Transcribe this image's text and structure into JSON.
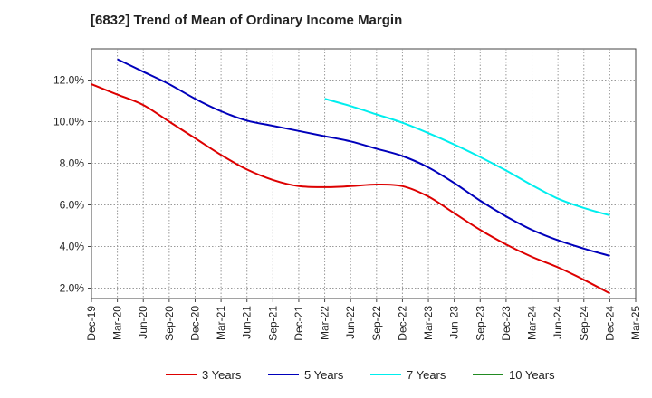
{
  "chart_data": {
    "type": "line",
    "title": "[6832]  Trend of Mean of Ordinary Income Margin",
    "xlabel": "",
    "ylabel": "",
    "x_ticks": [
      "Dec-19",
      "Mar-20",
      "Jun-20",
      "Sep-20",
      "Dec-20",
      "Mar-21",
      "Jun-21",
      "Sep-21",
      "Dec-21",
      "Mar-22",
      "Jun-22",
      "Sep-22",
      "Dec-22",
      "Mar-23",
      "Jun-23",
      "Sep-23",
      "Dec-23",
      "Mar-24",
      "Jun-24",
      "Sep-24",
      "Dec-24",
      "Mar-25"
    ],
    "y_ticks": [
      "2.0%",
      "4.0%",
      "6.0%",
      "8.0%",
      "10.0%",
      "12.0%"
    ],
    "ylim": [
      1.5,
      13.5
    ],
    "grid": true,
    "legend_position": "bottom",
    "series": [
      {
        "name": "3 Years",
        "color": "#dd0000",
        "x": [
          "Dec-19",
          "Mar-20",
          "Jun-20",
          "Sep-20",
          "Dec-20",
          "Mar-21",
          "Jun-21",
          "Sep-21",
          "Dec-21",
          "Mar-22",
          "Jun-22",
          "Sep-22",
          "Dec-22",
          "Mar-23",
          "Jun-23",
          "Sep-23",
          "Dec-23",
          "Mar-24",
          "Jun-24",
          "Sep-24",
          "Dec-24"
        ],
        "values": [
          11.8,
          11.3,
          10.8,
          10.0,
          9.2,
          8.4,
          7.7,
          7.2,
          6.9,
          6.85,
          6.9,
          6.98,
          6.9,
          6.4,
          5.6,
          4.8,
          4.1,
          3.5,
          3.0,
          2.4,
          1.75
        ]
      },
      {
        "name": "5 Years",
        "color": "#0000bb",
        "x": [
          "Mar-20",
          "Jun-20",
          "Sep-20",
          "Dec-20",
          "Mar-21",
          "Jun-21",
          "Sep-21",
          "Dec-21",
          "Mar-22",
          "Jun-22",
          "Sep-22",
          "Dec-22",
          "Mar-23",
          "Jun-23",
          "Sep-23",
          "Dec-23",
          "Mar-24",
          "Jun-24",
          "Sep-24",
          "Dec-24"
        ],
        "values": [
          13.0,
          12.4,
          11.8,
          11.1,
          10.5,
          10.05,
          9.8,
          9.55,
          9.3,
          9.05,
          8.7,
          8.35,
          7.8,
          7.05,
          6.2,
          5.45,
          4.8,
          4.3,
          3.9,
          3.55
        ]
      },
      {
        "name": "7 Years",
        "color": "#00eeee",
        "x": [
          "Mar-22",
          "Jun-22",
          "Sep-22",
          "Dec-22",
          "Mar-23",
          "Jun-23",
          "Sep-23",
          "Dec-23",
          "Mar-24",
          "Jun-24",
          "Sep-24",
          "Dec-24"
        ],
        "values": [
          11.1,
          10.75,
          10.35,
          9.95,
          9.45,
          8.9,
          8.3,
          7.65,
          6.95,
          6.3,
          5.85,
          5.5
        ]
      },
      {
        "name": "10 Years",
        "color": "#228b22",
        "x": [],
        "values": []
      }
    ]
  }
}
